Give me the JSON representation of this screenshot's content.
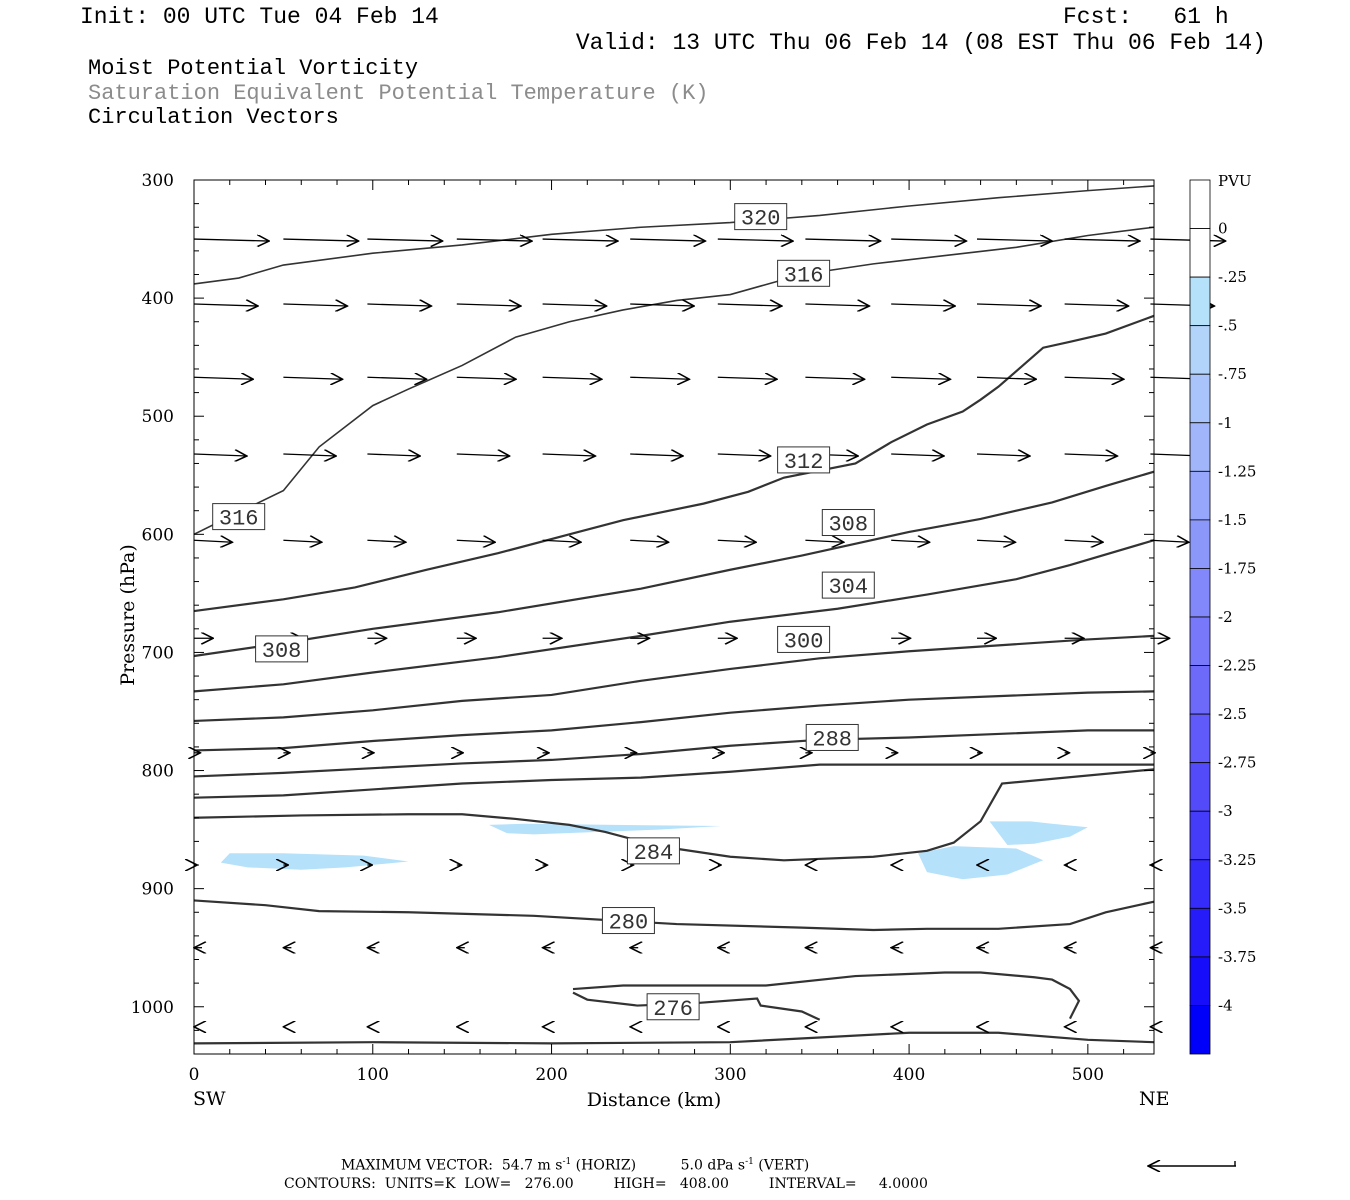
{
  "header": {
    "init": "Init: 00 UTC Tue 04 Feb 14",
    "fcst": "Fcst:   61 h",
    "valid": "Valid: 13 UTC Thu 06 Feb 14 (08 EST Thu 06 Feb 14)"
  },
  "titles": {
    "line1": "Moist Potential Vorticity",
    "line2": "Saturation Equivalent Potential Temperature (K)",
    "line3": "Circulation Vectors"
  },
  "footer": {
    "max_vector_label": "MAXIMUM VECTOR:",
    "max_vector_horiz": "54.7 m s",
    "horiz_tag": "(HORIZ)",
    "max_vector_vert": "5.0 dPa s",
    "vert_tag": "(VERT)",
    "contours": "CONTOURS:  UNITS=K  LOW=   276.00         HIGH=   408.00         INTERVAL=     4.0000"
  },
  "direction_labels": {
    "left": "SW",
    "right": "NE"
  },
  "colors": {
    "contour": "#333333",
    "pv_light": "#b6e1fa",
    "frame": "#000000"
  },
  "chart_data": {
    "type": "contour",
    "xlabel": "Distance (km)",
    "ylabel": "Pressure (hPa)",
    "xlim": [
      0,
      537
    ],
    "ylim": [
      1040,
      300
    ],
    "y_log": false,
    "x_ticks": [
      0,
      100,
      200,
      300,
      400,
      500
    ],
    "y_ticks": [
      300,
      400,
      500,
      600,
      700,
      800,
      900,
      1000
    ],
    "colorbar": {
      "title": "PVU",
      "labels": [
        "0",
        "-.25",
        "-.5",
        "-.75",
        "-1",
        "-1.25",
        "-1.5",
        "-1.75",
        "-2",
        "-2.25",
        "-2.5",
        "-2.75",
        "-3",
        "-3.25",
        "-3.5",
        "-3.75",
        "-4"
      ],
      "colors": [
        "#ffffff",
        "#ffffff",
        "#b6e1fa",
        "#b3d4fa",
        "#a9c4fa",
        "#a0b5fa",
        "#96a6fa",
        "#8c97fa",
        "#8288fa",
        "#7879fa",
        "#6d6afa",
        "#615afa",
        "#534bfa",
        "#453cfa",
        "#362cfa",
        "#261cfa",
        "#160dfa",
        "#0000fa"
      ]
    },
    "theta_e_contours": [
      {
        "level": 320,
        "label": "320",
        "label_at": [
          317,
          331
        ],
        "points": [
          [
            0,
            388
          ],
          [
            25,
            383
          ],
          [
            50,
            372
          ],
          [
            100,
            362
          ],
          [
            150,
            355
          ],
          [
            200,
            346
          ],
          [
            250,
            340
          ],
          [
            300,
            336
          ],
          [
            350,
            330
          ],
          [
            400,
            322
          ],
          [
            450,
            315
          ],
          [
            500,
            309
          ],
          [
            537,
            305
          ]
        ]
      },
      {
        "level": 316,
        "label": "316",
        "label_at": [
          341,
          379
        ],
        "points": [
          [
            0,
            600
          ],
          [
            20,
            585
          ],
          [
            50,
            563
          ],
          [
            70,
            526
          ],
          [
            100,
            491
          ],
          [
            120,
            477
          ],
          [
            150,
            457
          ],
          [
            180,
            433
          ],
          [
            210,
            420
          ],
          [
            240,
            410
          ],
          [
            270,
            402
          ],
          [
            300,
            397
          ],
          [
            340,
            380
          ],
          [
            380,
            371
          ],
          [
            420,
            364
          ],
          [
            460,
            357
          ],
          [
            500,
            347
          ],
          [
            537,
            340
          ]
        ]
      },
      {
        "level": 316,
        "label": "316",
        "label_at": [
          25,
          585
        ],
        "points": []
      },
      {
        "level": 312,
        "label": "312",
        "label_at": [
          341,
          537
        ],
        "points": [
          [
            0,
            665
          ],
          [
            50,
            655
          ],
          [
            90,
            645
          ],
          [
            130,
            630
          ],
          [
            170,
            616
          ],
          [
            210,
            600
          ],
          [
            240,
            588
          ],
          [
            285,
            574
          ],
          [
            310,
            564
          ],
          [
            330,
            552
          ],
          [
            370,
            540
          ],
          [
            390,
            522
          ],
          [
            410,
            507
          ],
          [
            430,
            496
          ],
          [
            440,
            486
          ],
          [
            450,
            475
          ],
          [
            475,
            442
          ],
          [
            490,
            437
          ],
          [
            510,
            430
          ],
          [
            537,
            415
          ]
        ]
      },
      {
        "level": 308,
        "label": "308",
        "label_at": [
          366,
          590
        ],
        "points": [
          [
            0,
            703
          ],
          [
            50,
            692
          ],
          [
            100,
            680
          ],
          [
            170,
            666
          ],
          [
            250,
            646
          ],
          [
            300,
            630
          ],
          [
            340,
            618
          ],
          [
            400,
            598
          ],
          [
            440,
            587
          ],
          [
            480,
            573
          ],
          [
            510,
            559
          ],
          [
            537,
            547
          ]
        ]
      },
      {
        "level": 308,
        "label": "308",
        "label_at": [
          49,
          697
        ],
        "points": []
      },
      {
        "level": 304,
        "label": "304",
        "label_at": [
          366,
          643
        ],
        "points": [
          [
            0,
            733
          ],
          [
            50,
            727
          ],
          [
            100,
            717
          ],
          [
            170,
            704
          ],
          [
            250,
            686
          ],
          [
            300,
            674
          ],
          [
            360,
            663
          ],
          [
            410,
            651
          ],
          [
            460,
            638
          ],
          [
            490,
            626
          ],
          [
            537,
            605
          ]
        ]
      },
      {
        "level": 300,
        "label": "300",
        "label_at": [
          341,
          689
        ],
        "points": [
          [
            0,
            758
          ],
          [
            50,
            755
          ],
          [
            100,
            749
          ],
          [
            150,
            741
          ],
          [
            200,
            736
          ],
          [
            250,
            724
          ],
          [
            300,
            714
          ],
          [
            350,
            705
          ],
          [
            400,
            699
          ],
          [
            450,
            694
          ],
          [
            500,
            689
          ],
          [
            537,
            686
          ]
        ]
      },
      {
        "level": 296,
        "label": "",
        "label_at": null,
        "points": [
          [
            0,
            783
          ],
          [
            50,
            781
          ],
          [
            100,
            775
          ],
          [
            150,
            770
          ],
          [
            200,
            766
          ],
          [
            250,
            759
          ],
          [
            300,
            751
          ],
          [
            350,
            745
          ],
          [
            400,
            740
          ],
          [
            450,
            737
          ],
          [
            500,
            734
          ],
          [
            537,
            733
          ]
        ]
      },
      {
        "level": 292,
        "label": "",
        "label_at": null,
        "points": [
          [
            0,
            805
          ],
          [
            50,
            802
          ],
          [
            100,
            798
          ],
          [
            150,
            794
          ],
          [
            200,
            791
          ],
          [
            250,
            786
          ],
          [
            300,
            779
          ],
          [
            350,
            774
          ],
          [
            400,
            772
          ],
          [
            450,
            769
          ],
          [
            500,
            766
          ],
          [
            537,
            766
          ]
        ]
      },
      {
        "level": 288,
        "label": "288",
        "label_at": [
          357,
          772
        ],
        "points": [
          [
            0,
            823
          ],
          [
            50,
            821
          ],
          [
            100,
            816
          ],
          [
            150,
            811
          ],
          [
            200,
            808
          ],
          [
            250,
            806
          ],
          [
            300,
            801
          ],
          [
            350,
            795
          ],
          [
            400,
            795
          ],
          [
            500,
            795
          ],
          [
            537,
            795
          ]
        ]
      },
      {
        "level": 284,
        "label": "284",
        "label_at": [
          257,
          868
        ],
        "points": [
          [
            0,
            840
          ],
          [
            60,
            838
          ],
          [
            120,
            837
          ],
          [
            150,
            837
          ],
          [
            180,
            841
          ],
          [
            210,
            846
          ],
          [
            230,
            852
          ],
          [
            260,
            864
          ],
          [
            300,
            873
          ],
          [
            330,
            876
          ],
          [
            380,
            873
          ],
          [
            410,
            868
          ],
          [
            425,
            861
          ],
          [
            440,
            843
          ],
          [
            452,
            811
          ],
          [
            537,
            799
          ]
        ]
      },
      {
        "level": 280,
        "label": "280",
        "label_at": [
          243,
          927
        ],
        "points": [
          [
            0,
            910
          ],
          [
            40,
            914
          ],
          [
            70,
            919
          ],
          [
            120,
            920
          ],
          [
            190,
            923
          ],
          [
            270,
            930
          ],
          [
            340,
            933
          ],
          [
            380,
            935
          ],
          [
            410,
            934
          ],
          [
            450,
            934
          ],
          [
            490,
            930
          ],
          [
            510,
            920
          ],
          [
            537,
            911
          ]
        ]
      },
      {
        "level": 276,
        "label": "276",
        "label_at": [
          268,
          1000
        ],
        "points": [
          [
            212,
            985
          ],
          [
            240,
            982
          ],
          [
            320,
            982
          ],
          [
            370,
            974
          ],
          [
            420,
            971
          ],
          [
            440,
            971
          ],
          [
            470,
            975
          ],
          [
            480,
            977
          ],
          [
            490,
            985
          ],
          [
            495,
            995
          ],
          [
            490,
            1010
          ]
        ]
      },
      {
        "level": 276,
        "label": "",
        "label_at": null,
        "points": [
          [
            212,
            988
          ],
          [
            220,
            994
          ],
          [
            248,
            999
          ],
          [
            280,
            997
          ],
          [
            315,
            993
          ],
          [
            317,
            999
          ],
          [
            340,
            1004
          ],
          [
            350,
            1011
          ]
        ]
      },
      {
        "level": 276,
        "label": "",
        "label_at": null,
        "points": [
          [
            0,
            1031
          ],
          [
            100,
            1030
          ],
          [
            200,
            1031
          ],
          [
            300,
            1030
          ],
          [
            350,
            1026
          ],
          [
            400,
            1022
          ],
          [
            450,
            1022
          ],
          [
            500,
            1028
          ],
          [
            537,
            1030
          ]
        ]
      }
    ],
    "pv_regions": [
      {
        "value": -0.25,
        "points": [
          [
            15,
            878
          ],
          [
            20,
            870
          ],
          [
            50,
            870
          ],
          [
            95,
            872
          ],
          [
            120,
            877
          ],
          [
            85,
            882
          ],
          [
            60,
            884
          ],
          [
            30,
            882
          ]
        ]
      },
      {
        "value": -0.25,
        "points": [
          [
            165,
            846
          ],
          [
            185,
            845
          ],
          [
            235,
            846
          ],
          [
            295,
            847
          ],
          [
            260,
            850
          ],
          [
            225,
            852
          ],
          [
            190,
            854
          ],
          [
            175,
            853
          ]
        ]
      },
      {
        "value": -0.25,
        "points": [
          [
            445,
            843
          ],
          [
            468,
            843
          ],
          [
            480,
            845
          ],
          [
            500,
            848
          ],
          [
            490,
            856
          ],
          [
            470,
            862
          ],
          [
            455,
            863
          ]
        ]
      },
      {
        "value": -0.25,
        "points": [
          [
            405,
            870
          ],
          [
            425,
            864
          ],
          [
            460,
            866
          ],
          [
            475,
            876
          ],
          [
            455,
            888
          ],
          [
            430,
            892
          ],
          [
            410,
            886
          ]
        ]
      }
    ],
    "wind_vectors": {
      "levels": [
        350,
        405,
        467,
        532,
        605,
        688,
        785,
        880,
        950,
        1017
      ],
      "x": [
        0,
        50,
        97,
        147,
        195,
        244,
        293,
        342,
        390,
        438,
        487,
        535
      ],
      "u": [
        [
          47,
          47,
          47,
          47,
          47,
          47,
          47,
          47,
          47,
          47,
          47,
          47
        ],
        [
          40,
          40,
          40,
          40,
          40,
          40,
          40,
          40,
          40,
          40,
          40,
          40
        ],
        [
          37,
          37,
          37,
          37,
          37,
          37,
          37,
          37,
          37,
          37,
          37,
          37
        ],
        [
          33,
          33,
          33,
          33,
          33,
          33,
          33,
          33,
          33,
          33,
          33,
          33
        ],
        [
          24,
          24,
          24,
          24,
          24,
          24,
          24,
          24,
          24,
          24,
          24,
          24
        ],
        [
          12,
          12,
          12,
          12,
          12,
          12,
          12,
          12,
          12,
          12,
          12,
          12
        ],
        [
          4,
          4,
          4,
          4,
          4,
          4,
          4,
          4,
          4,
          3,
          3,
          3
        ],
        [
          2,
          3,
          3,
          3,
          3,
          2,
          2,
          -1,
          -1,
          -1,
          -2,
          -2
        ],
        [
          -5,
          -5,
          -5,
          -5,
          -5,
          -5,
          -5,
          -5,
          -5,
          -5,
          -5,
          -5
        ],
        [
          -1,
          -1,
          -1,
          -1,
          -1,
          -1,
          -1,
          -1,
          -1,
          -1,
          -1,
          -1
        ]
      ]
    }
  }
}
